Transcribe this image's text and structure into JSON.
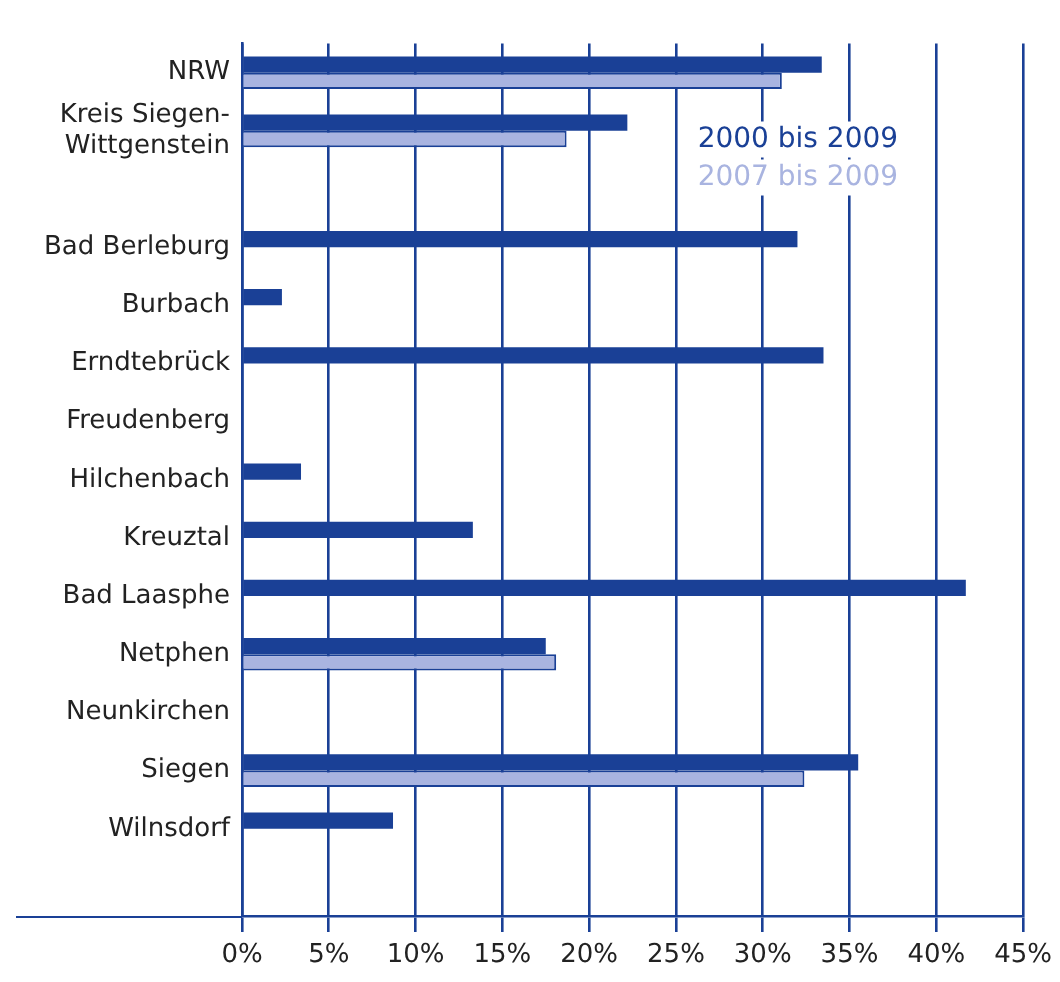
{
  "chart_data": {
    "type": "bar",
    "orientation": "horizontal",
    "categories": [
      "NRW",
      "Kreis Siegen-Wittgenstein",
      null,
      "Bad Berleburg",
      "Burbach",
      "Erndtebrück",
      "Freudenberg",
      "Hilchenbach",
      "Kreuztal",
      "Bad Laasphe",
      "Netphen",
      "Neunkirchen",
      "Siegen",
      "Wilnsdorf",
      null
    ],
    "series": [
      {
        "name": "2000 bis 2009",
        "color": "#1a4096",
        "values": [
          33.4,
          22.2,
          null,
          32.0,
          2.3,
          33.5,
          null,
          3.4,
          13.3,
          41.7,
          17.5,
          null,
          35.5,
          8.7,
          null
        ]
      },
      {
        "name": "2007 bis 2009",
        "color": "#a9b4e0",
        "values": [
          31.1,
          18.7,
          null,
          null,
          null,
          null,
          null,
          null,
          null,
          null,
          18.1,
          null,
          32.4,
          null,
          null
        ]
      }
    ],
    "xlim": [
      0,
      45
    ],
    "xticks": [
      {
        "value": 0,
        "label": "0%"
      },
      {
        "value": 5,
        "label": "5%"
      },
      {
        "value": 10,
        "label": "10%"
      },
      {
        "value": 15,
        "label": "15%"
      },
      {
        "value": 20,
        "label": "20%"
      },
      {
        "value": 25,
        "label": "25%"
      },
      {
        "value": 30,
        "label": "30%"
      },
      {
        "value": 35,
        "label": "35%"
      },
      {
        "value": 40,
        "label": "40%"
      },
      {
        "value": 45,
        "label": "45%"
      }
    ],
    "grid": "x",
    "legend": "top right"
  }
}
